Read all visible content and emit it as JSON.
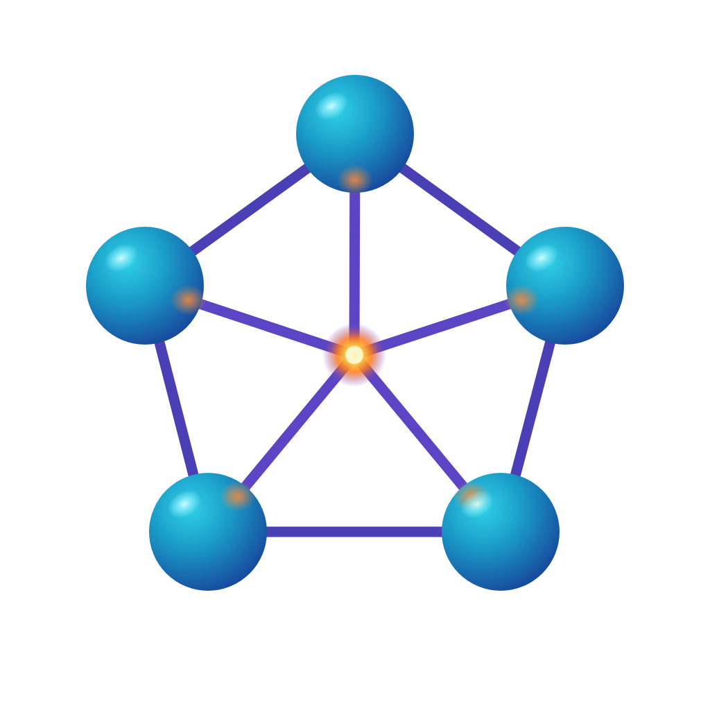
{
  "diagram": {
    "type": "network-pentagon",
    "nodes": [
      {
        "id": "top",
        "role": "outer-node"
      },
      {
        "id": "upper-left",
        "role": "outer-node"
      },
      {
        "id": "upper-right",
        "role": "outer-node"
      },
      {
        "id": "lower-left",
        "role": "outer-node"
      },
      {
        "id": "lower-right",
        "role": "outer-node"
      },
      {
        "id": "center",
        "role": "hub"
      }
    ],
    "edges": [
      {
        "from": "top",
        "to": "upper-left"
      },
      {
        "from": "top",
        "to": "upper-right"
      },
      {
        "from": "upper-left",
        "to": "lower-left"
      },
      {
        "from": "upper-right",
        "to": "lower-right"
      },
      {
        "from": "lower-left",
        "to": "lower-right"
      },
      {
        "from": "center",
        "to": "top"
      },
      {
        "from": "center",
        "to": "upper-left"
      },
      {
        "from": "center",
        "to": "upper-right"
      },
      {
        "from": "center",
        "to": "lower-left"
      },
      {
        "from": "center",
        "to": "lower-right"
      }
    ],
    "colors": {
      "background": "#ffffff",
      "node": "#1a9cc8",
      "node_dark": "#17489c",
      "node_highlight": "#8ef3ff",
      "edge": "#4b3fb5",
      "hub_core": "#fff6c8",
      "hub_glow": "#ff7a1a"
    }
  }
}
